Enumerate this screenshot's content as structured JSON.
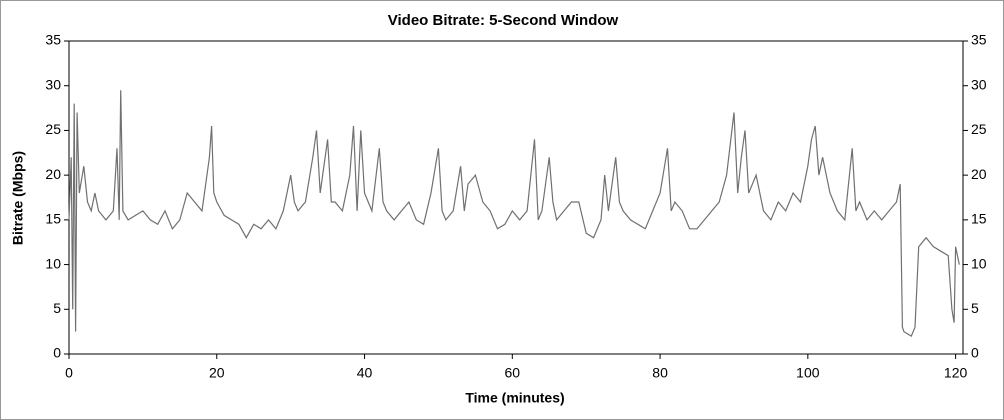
{
  "chart_data": {
    "type": "line",
    "title": "Video Bitrate: 5-Second Window",
    "x_label": "Time (minutes)",
    "y_label": "Bitrate (Mbps)",
    "xlim": [
      0,
      121
    ],
    "xticks": [
      0,
      20,
      40,
      60,
      80,
      100,
      120
    ],
    "ylim": [
      0,
      35
    ],
    "yticks": [
      0,
      5,
      10,
      15,
      20,
      25,
      30,
      35
    ],
    "grid": false,
    "right_axis": true,
    "series": [
      {
        "color": "#707070",
        "x": [
          0,
          0.3,
          0.5,
          0.7,
          0.9,
          1.1,
          1.4,
          2,
          2.5,
          3,
          3.5,
          4,
          5,
          6,
          6.5,
          6.8,
          7,
          7.3,
          8,
          9,
          10,
          11,
          12,
          13,
          14,
          15,
          16,
          17,
          18,
          19,
          19.3,
          19.6,
          20,
          21,
          22,
          23,
          24,
          25,
          26,
          27,
          28,
          29,
          30,
          30.5,
          31,
          32,
          33,
          33.5,
          34,
          35,
          35.5,
          36,
          37,
          38,
          38.5,
          39,
          39.5,
          40,
          41,
          42,
          42.5,
          43,
          44,
          45,
          46,
          47,
          48,
          49,
          50,
          50.5,
          51,
          52,
          53,
          53.5,
          54,
          55,
          56,
          57,
          58,
          59,
          60,
          61,
          62,
          63,
          63.5,
          64,
          65,
          65.5,
          66,
          67,
          68,
          69,
          70,
          71,
          72,
          72.5,
          73,
          74,
          74.5,
          75,
          76,
          77,
          78,
          79,
          80,
          81,
          81.5,
          82,
          83,
          84,
          85,
          86,
          87,
          88,
          89,
          90,
          90.5,
          91,
          91.5,
          92,
          93,
          94,
          95,
          96,
          97,
          98,
          99,
          100,
          100.5,
          101,
          101.5,
          102,
          103,
          104,
          105,
          106,
          106.5,
          107,
          108,
          109,
          110,
          111,
          112,
          112.5,
          112.8,
          113,
          114,
          114.5,
          115,
          116,
          117,
          118,
          119,
          119.5,
          119.8,
          120,
          120.5
        ],
        "values": [
          15,
          22,
          5,
          28,
          2.5,
          27,
          18,
          21,
          17,
          16,
          18,
          16,
          15,
          16,
          23,
          15,
          29.5,
          16,
          15,
          15.5,
          16,
          15,
          14.5,
          16,
          14,
          15,
          18,
          17,
          16,
          22,
          25.5,
          18,
          17,
          15.5,
          15,
          14.5,
          13,
          14.5,
          14,
          15,
          14,
          16,
          20,
          17,
          16,
          17,
          22,
          25,
          18,
          24,
          17,
          17,
          16,
          20,
          25.5,
          16,
          25,
          18,
          16,
          23,
          17,
          16,
          15,
          16,
          17,
          15,
          14.5,
          18,
          23,
          16,
          15,
          16,
          21,
          16,
          19,
          20,
          17,
          16,
          14,
          14.5,
          16,
          15,
          16,
          24,
          15,
          16,
          22,
          17,
          15,
          16,
          17,
          17,
          13.5,
          13,
          15,
          20,
          16,
          22,
          17,
          16,
          15,
          14.5,
          14,
          16,
          18,
          23,
          16,
          17,
          16,
          14,
          14,
          15,
          16,
          17,
          20,
          27,
          18,
          22,
          25,
          18,
          20,
          16,
          15,
          17,
          16,
          18,
          17,
          21,
          24,
          25.5,
          20,
          22,
          18,
          16,
          15,
          23,
          16,
          17,
          15,
          16,
          15,
          16,
          17,
          19,
          3,
          2.5,
          2,
          3,
          12,
          13,
          12,
          11.5,
          11,
          5,
          3.5,
          12,
          10
        ]
      }
    ]
  }
}
